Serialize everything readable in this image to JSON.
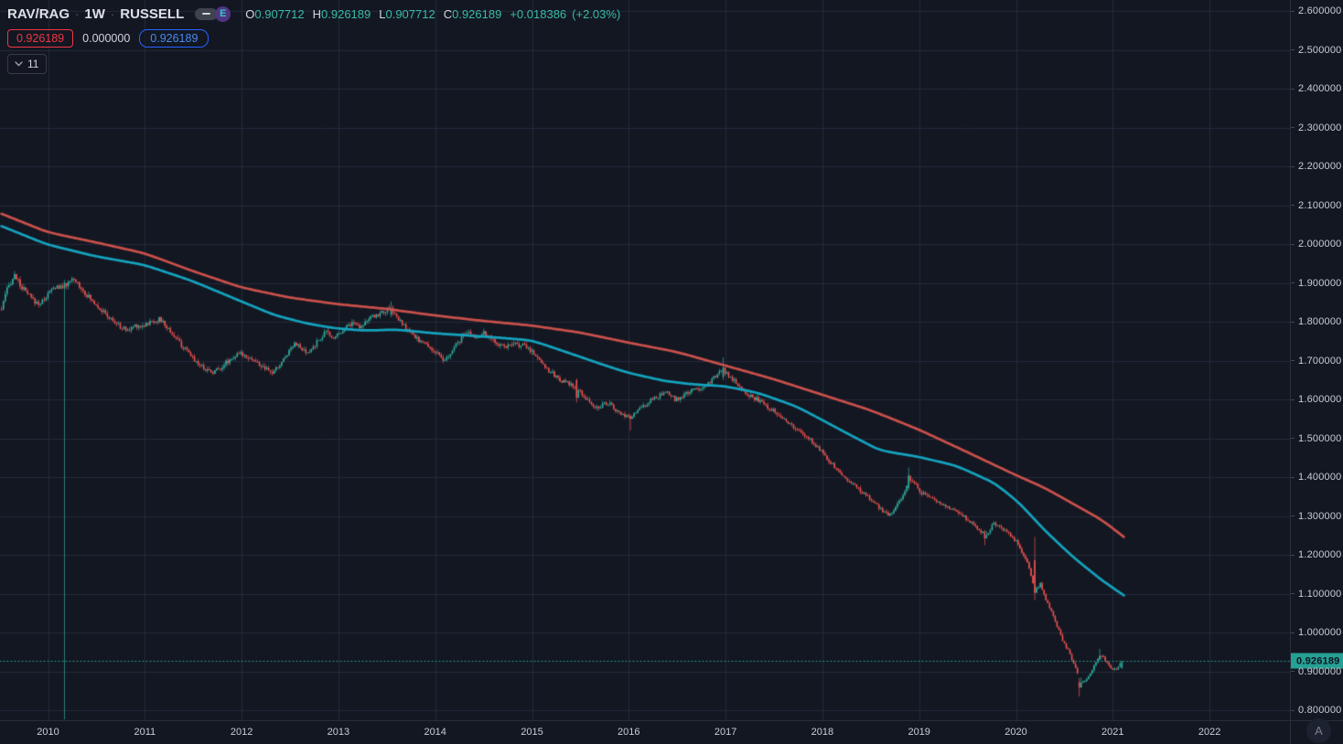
{
  "header": {
    "symbol": "RAV/RAG",
    "separator": "·",
    "interval": "1W",
    "exchange": "RUSSELL",
    "flag_letter": "E",
    "ohlc": {
      "o_label": "O",
      "o_value": "0.907712",
      "h_label": "H",
      "h_value": "0.926189",
      "l_label": "L",
      "l_value": "0.907712",
      "c_label": "C",
      "c_value": "0.926189",
      "change": "+0.018386",
      "change_pct": "(+2.03%)"
    },
    "quote": {
      "bid": "0.926189",
      "mid": "0.000000",
      "ask": "0.926189"
    },
    "collapse": {
      "count": "11"
    }
  },
  "price_axis": {
    "ticks": [
      "2.600000",
      "2.500000",
      "2.400000",
      "2.300000",
      "2.200000",
      "2.100000",
      "2.000000",
      "1.900000",
      "1.800000",
      "1.700000",
      "1.600000",
      "1.500000",
      "1.400000",
      "1.300000",
      "1.200000",
      "1.100000",
      "1.000000",
      "0.900000",
      "0.800000"
    ],
    "last_price_label": "0.926189"
  },
  "time_axis": {
    "years": [
      "2010",
      "2011",
      "2012",
      "2013",
      "2014",
      "2015",
      "2016",
      "2017",
      "2018",
      "2019",
      "2020",
      "2021",
      "2022"
    ]
  },
  "corner": {
    "label": "A"
  },
  "colors": {
    "background": "#131722",
    "grid": "#242a3a",
    "axis_line": "#2a2e39",
    "axis_text": "#c9cdd6",
    "candle_up": "#2fae9f",
    "candle_down": "#ef5350",
    "ma_fast": "#14a2bd",
    "ma_slow": "#c9504b",
    "last_price_bg": "#25a094",
    "last_price_text": "#0d1320",
    "dotted_price_line": "#26a69a",
    "ohlc_value": "#38bba6",
    "bid_badge": "#f23645",
    "ask_badge_border": "#2962ff",
    "ask_badge_text": "#4a8af4"
  },
  "chart_data": {
    "type": "candlestick",
    "title": "RAV/RAG 1W RUSSELL",
    "x_unit": "decimal_year",
    "x_range": [
      2009.52,
      2021.1
    ],
    "y_range": [
      0.774,
      2.628
    ],
    "grid": true,
    "last_price": 0.926189,
    "last_candle": {
      "open": 0.907712,
      "high": 0.926189,
      "low": 0.907712,
      "close": 0.926189,
      "change": 0.018386,
      "change_pct": 2.03
    },
    "anomaly_note": "single bar in early 2010 has a wick spiking down to ~0.78",
    "render_seed": 987654321,
    "close_anchors": [
      [
        2009.52,
        1.832
      ],
      [
        2009.57,
        1.878
      ],
      [
        2009.62,
        1.905
      ],
      [
        2009.66,
        1.922
      ],
      [
        2009.7,
        1.898
      ],
      [
        2009.75,
        1.882
      ],
      [
        2009.8,
        1.868
      ],
      [
        2009.86,
        1.852
      ],
      [
        2009.92,
        1.846
      ],
      [
        2009.97,
        1.862
      ],
      [
        2010.03,
        1.88
      ],
      [
        2010.09,
        1.892
      ],
      [
        2010.14,
        1.886
      ],
      [
        2010.2,
        1.896
      ],
      [
        2010.26,
        1.908
      ],
      [
        2010.31,
        1.898
      ],
      [
        2010.37,
        1.878
      ],
      [
        2010.44,
        1.858
      ],
      [
        2010.5,
        1.845
      ],
      [
        2010.57,
        1.825
      ],
      [
        2010.64,
        1.808
      ],
      [
        2010.72,
        1.792
      ],
      [
        2010.78,
        1.782
      ],
      [
        2010.84,
        1.778
      ],
      [
        2010.9,
        1.792
      ],
      [
        2010.96,
        1.788
      ],
      [
        2011.02,
        1.795
      ],
      [
        2011.09,
        1.802
      ],
      [
        2011.16,
        1.806
      ],
      [
        2011.24,
        1.782
      ],
      [
        2011.32,
        1.758
      ],
      [
        2011.4,
        1.732
      ],
      [
        2011.48,
        1.712
      ],
      [
        2011.56,
        1.69
      ],
      [
        2011.63,
        1.678
      ],
      [
        2011.7,
        1.67
      ],
      [
        2011.77,
        1.68
      ],
      [
        2011.84,
        1.695
      ],
      [
        2011.92,
        1.71
      ],
      [
        2012.0,
        1.718
      ],
      [
        2012.08,
        1.708
      ],
      [
        2012.16,
        1.694
      ],
      [
        2012.24,
        1.678
      ],
      [
        2012.32,
        1.668
      ],
      [
        2012.4,
        1.69
      ],
      [
        2012.48,
        1.722
      ],
      [
        2012.55,
        1.748
      ],
      [
        2012.62,
        1.728
      ],
      [
        2012.68,
        1.716
      ],
      [
        2012.75,
        1.738
      ],
      [
        2012.82,
        1.76
      ],
      [
        2012.88,
        1.776
      ],
      [
        2012.93,
        1.758
      ],
      [
        2013.0,
        1.77
      ],
      [
        2013.08,
        1.788
      ],
      [
        2013.15,
        1.798
      ],
      [
        2013.22,
        1.788
      ],
      [
        2013.3,
        1.805
      ],
      [
        2013.38,
        1.815
      ],
      [
        2013.46,
        1.825
      ],
      [
        2013.54,
        1.835
      ],
      [
        2013.62,
        1.805
      ],
      [
        2013.7,
        1.782
      ],
      [
        2013.78,
        1.762
      ],
      [
        2013.86,
        1.748
      ],
      [
        2013.94,
        1.735
      ],
      [
        2014.02,
        1.718
      ],
      [
        2014.08,
        1.698
      ],
      [
        2014.14,
        1.71
      ],
      [
        2014.21,
        1.738
      ],
      [
        2014.28,
        1.762
      ],
      [
        2014.35,
        1.772
      ],
      [
        2014.42,
        1.76
      ],
      [
        2014.5,
        1.77
      ],
      [
        2014.58,
        1.755
      ],
      [
        2014.66,
        1.742
      ],
      [
        2014.75,
        1.736
      ],
      [
        2014.84,
        1.742
      ],
      [
        2014.92,
        1.738
      ],
      [
        2015.0,
        1.724
      ],
      [
        2015.08,
        1.702
      ],
      [
        2015.16,
        1.678
      ],
      [
        2015.25,
        1.658
      ],
      [
        2015.33,
        1.645
      ],
      [
        2015.42,
        1.635
      ],
      [
        2015.5,
        1.618
      ],
      [
        2015.58,
        1.598
      ],
      [
        2015.65,
        1.576
      ],
      [
        2015.72,
        1.585
      ],
      [
        2015.79,
        1.592
      ],
      [
        2015.86,
        1.572
      ],
      [
        2015.93,
        1.56
      ],
      [
        2016.0,
        1.552
      ],
      [
        2016.08,
        1.568
      ],
      [
        2016.16,
        1.584
      ],
      [
        2016.24,
        1.6
      ],
      [
        2016.32,
        1.61
      ],
      [
        2016.4,
        1.616
      ],
      [
        2016.48,
        1.6
      ],
      [
        2016.56,
        1.608
      ],
      [
        2016.64,
        1.622
      ],
      [
        2016.72,
        1.628
      ],
      [
        2016.8,
        1.638
      ],
      [
        2016.88,
        1.655
      ],
      [
        2016.95,
        1.672
      ],
      [
        2017.0,
        1.67
      ],
      [
        2017.08,
        1.65
      ],
      [
        2017.16,
        1.632
      ],
      [
        2017.25,
        1.61
      ],
      [
        2017.34,
        1.598
      ],
      [
        2017.43,
        1.582
      ],
      [
        2017.52,
        1.568
      ],
      [
        2017.61,
        1.55
      ],
      [
        2017.7,
        1.528
      ],
      [
        2017.79,
        1.512
      ],
      [
        2017.88,
        1.495
      ],
      [
        2017.96,
        1.475
      ],
      [
        2018.04,
        1.452
      ],
      [
        2018.12,
        1.428
      ],
      [
        2018.2,
        1.405
      ],
      [
        2018.28,
        1.39
      ],
      [
        2018.36,
        1.372
      ],
      [
        2018.44,
        1.355
      ],
      [
        2018.52,
        1.338
      ],
      [
        2018.6,
        1.318
      ],
      [
        2018.68,
        1.302
      ],
      [
        2018.75,
        1.318
      ],
      [
        2018.82,
        1.345
      ],
      [
        2018.88,
        1.385
      ],
      [
        2018.94,
        1.392
      ],
      [
        2019.0,
        1.365
      ],
      [
        2019.08,
        1.352
      ],
      [
        2019.16,
        1.34
      ],
      [
        2019.24,
        1.33
      ],
      [
        2019.32,
        1.32
      ],
      [
        2019.4,
        1.31
      ],
      [
        2019.48,
        1.296
      ],
      [
        2019.56,
        1.28
      ],
      [
        2019.63,
        1.262
      ],
      [
        2019.7,
        1.25
      ],
      [
        2019.77,
        1.282
      ],
      [
        2019.83,
        1.272
      ],
      [
        2019.89,
        1.262
      ],
      [
        2019.95,
        1.25
      ],
      [
        2020.01,
        1.232
      ],
      [
        2020.07,
        1.205
      ],
      [
        2020.13,
        1.178
      ],
      [
        2020.19,
        1.105
      ],
      [
        2020.25,
        1.125
      ],
      [
        2020.31,
        1.085
      ],
      [
        2020.37,
        1.05
      ],
      [
        2020.43,
        1.012
      ],
      [
        2020.49,
        0.975
      ],
      [
        2020.55,
        0.948
      ],
      [
        2020.61,
        0.912
      ],
      [
        2020.67,
        0.868
      ],
      [
        2020.73,
        0.882
      ],
      [
        2020.79,
        0.905
      ],
      [
        2020.85,
        0.932
      ],
      [
        2020.9,
        0.938
      ],
      [
        2020.95,
        0.918
      ],
      [
        2021.0,
        0.902
      ],
      [
        2021.05,
        0.908
      ],
      [
        2021.094,
        0.926189
      ]
    ],
    "special_candles": [
      {
        "year": 2010.18,
        "open": 1.886,
        "high": 1.908,
        "low": 0.776,
        "close": 1.9
      },
      {
        "year": 2013.54,
        "open": 1.818,
        "high": 1.852,
        "low": 1.812,
        "close": 1.836
      },
      {
        "year": 2015.46,
        "open": 1.65,
        "high": 1.654,
        "low": 1.592,
        "close": 1.604
      },
      {
        "year": 2016.02,
        "open": 1.558,
        "high": 1.562,
        "low": 1.52,
        "close": 1.55
      },
      {
        "year": 2016.98,
        "open": 1.658,
        "high": 1.708,
        "low": 1.65,
        "close": 1.682
      },
      {
        "year": 2018.9,
        "open": 1.372,
        "high": 1.425,
        "low": 1.366,
        "close": 1.404
      },
      {
        "year": 2019.67,
        "open": 1.26,
        "high": 1.264,
        "low": 1.225,
        "close": 1.242
      },
      {
        "year": 2020.19,
        "open": 1.186,
        "high": 1.246,
        "low": 1.083,
        "close": 1.102
      },
      {
        "year": 2020.66,
        "open": 0.872,
        "high": 0.883,
        "low": 0.835,
        "close": 0.858
      },
      {
        "year": 2020.86,
        "open": 0.93,
        "high": 0.958,
        "low": 0.926,
        "close": 0.94
      },
      {
        "year": 2021.094,
        "open": 0.907712,
        "high": 0.926189,
        "low": 0.907712,
        "close": 0.926189
      }
    ],
    "ma_fast": {
      "label": "short moving average (teal)",
      "points": [
        [
          2009.52,
          2.046
        ],
        [
          2010.0,
          1.998
        ],
        [
          2010.5,
          1.968
        ],
        [
          2011.0,
          1.946
        ],
        [
          2011.5,
          1.904
        ],
        [
          2012.0,
          1.852
        ],
        [
          2012.35,
          1.816
        ],
        [
          2012.7,
          1.794
        ],
        [
          2013.0,
          1.782
        ],
        [
          2013.3,
          1.777
        ],
        [
          2013.6,
          1.78
        ],
        [
          2014.0,
          1.77
        ],
        [
          2014.5,
          1.762
        ],
        [
          2015.0,
          1.752
        ],
        [
          2015.4,
          1.718
        ],
        [
          2015.75,
          1.688
        ],
        [
          2016.0,
          1.668
        ],
        [
          2016.4,
          1.646
        ],
        [
          2016.7,
          1.638
        ],
        [
          2017.0,
          1.634
        ],
        [
          2017.35,
          1.616
        ],
        [
          2017.75,
          1.58
        ],
        [
          2018.2,
          1.52
        ],
        [
          2018.6,
          1.468
        ],
        [
          2019.0,
          1.452
        ],
        [
          2019.4,
          1.428
        ],
        [
          2019.8,
          1.382
        ],
        [
          2020.05,
          1.33
        ],
        [
          2020.3,
          1.262
        ],
        [
          2020.6,
          1.192
        ],
        [
          2020.9,
          1.132
        ],
        [
          2021.13,
          1.093
        ]
      ]
    },
    "ma_slow": {
      "label": "long moving average (red)",
      "points": [
        [
          2009.52,
          2.078
        ],
        [
          2010.0,
          2.03
        ],
        [
          2010.5,
          2.004
        ],
        [
          2011.0,
          1.976
        ],
        [
          2011.5,
          1.93
        ],
        [
          2012.0,
          1.888
        ],
        [
          2012.5,
          1.862
        ],
        [
          2013.0,
          1.845
        ],
        [
          2013.5,
          1.833
        ],
        [
          2014.0,
          1.816
        ],
        [
          2014.5,
          1.802
        ],
        [
          2015.0,
          1.79
        ],
        [
          2015.5,
          1.772
        ],
        [
          2016.0,
          1.746
        ],
        [
          2016.5,
          1.722
        ],
        [
          2017.0,
          1.687
        ],
        [
          2017.5,
          1.652
        ],
        [
          2018.0,
          1.612
        ],
        [
          2018.5,
          1.572
        ],
        [
          2019.0,
          1.522
        ],
        [
          2019.5,
          1.464
        ],
        [
          2020.0,
          1.405
        ],
        [
          2020.3,
          1.372
        ],
        [
          2020.6,
          1.33
        ],
        [
          2020.9,
          1.288
        ],
        [
          2021.13,
          1.243
        ]
      ]
    }
  }
}
